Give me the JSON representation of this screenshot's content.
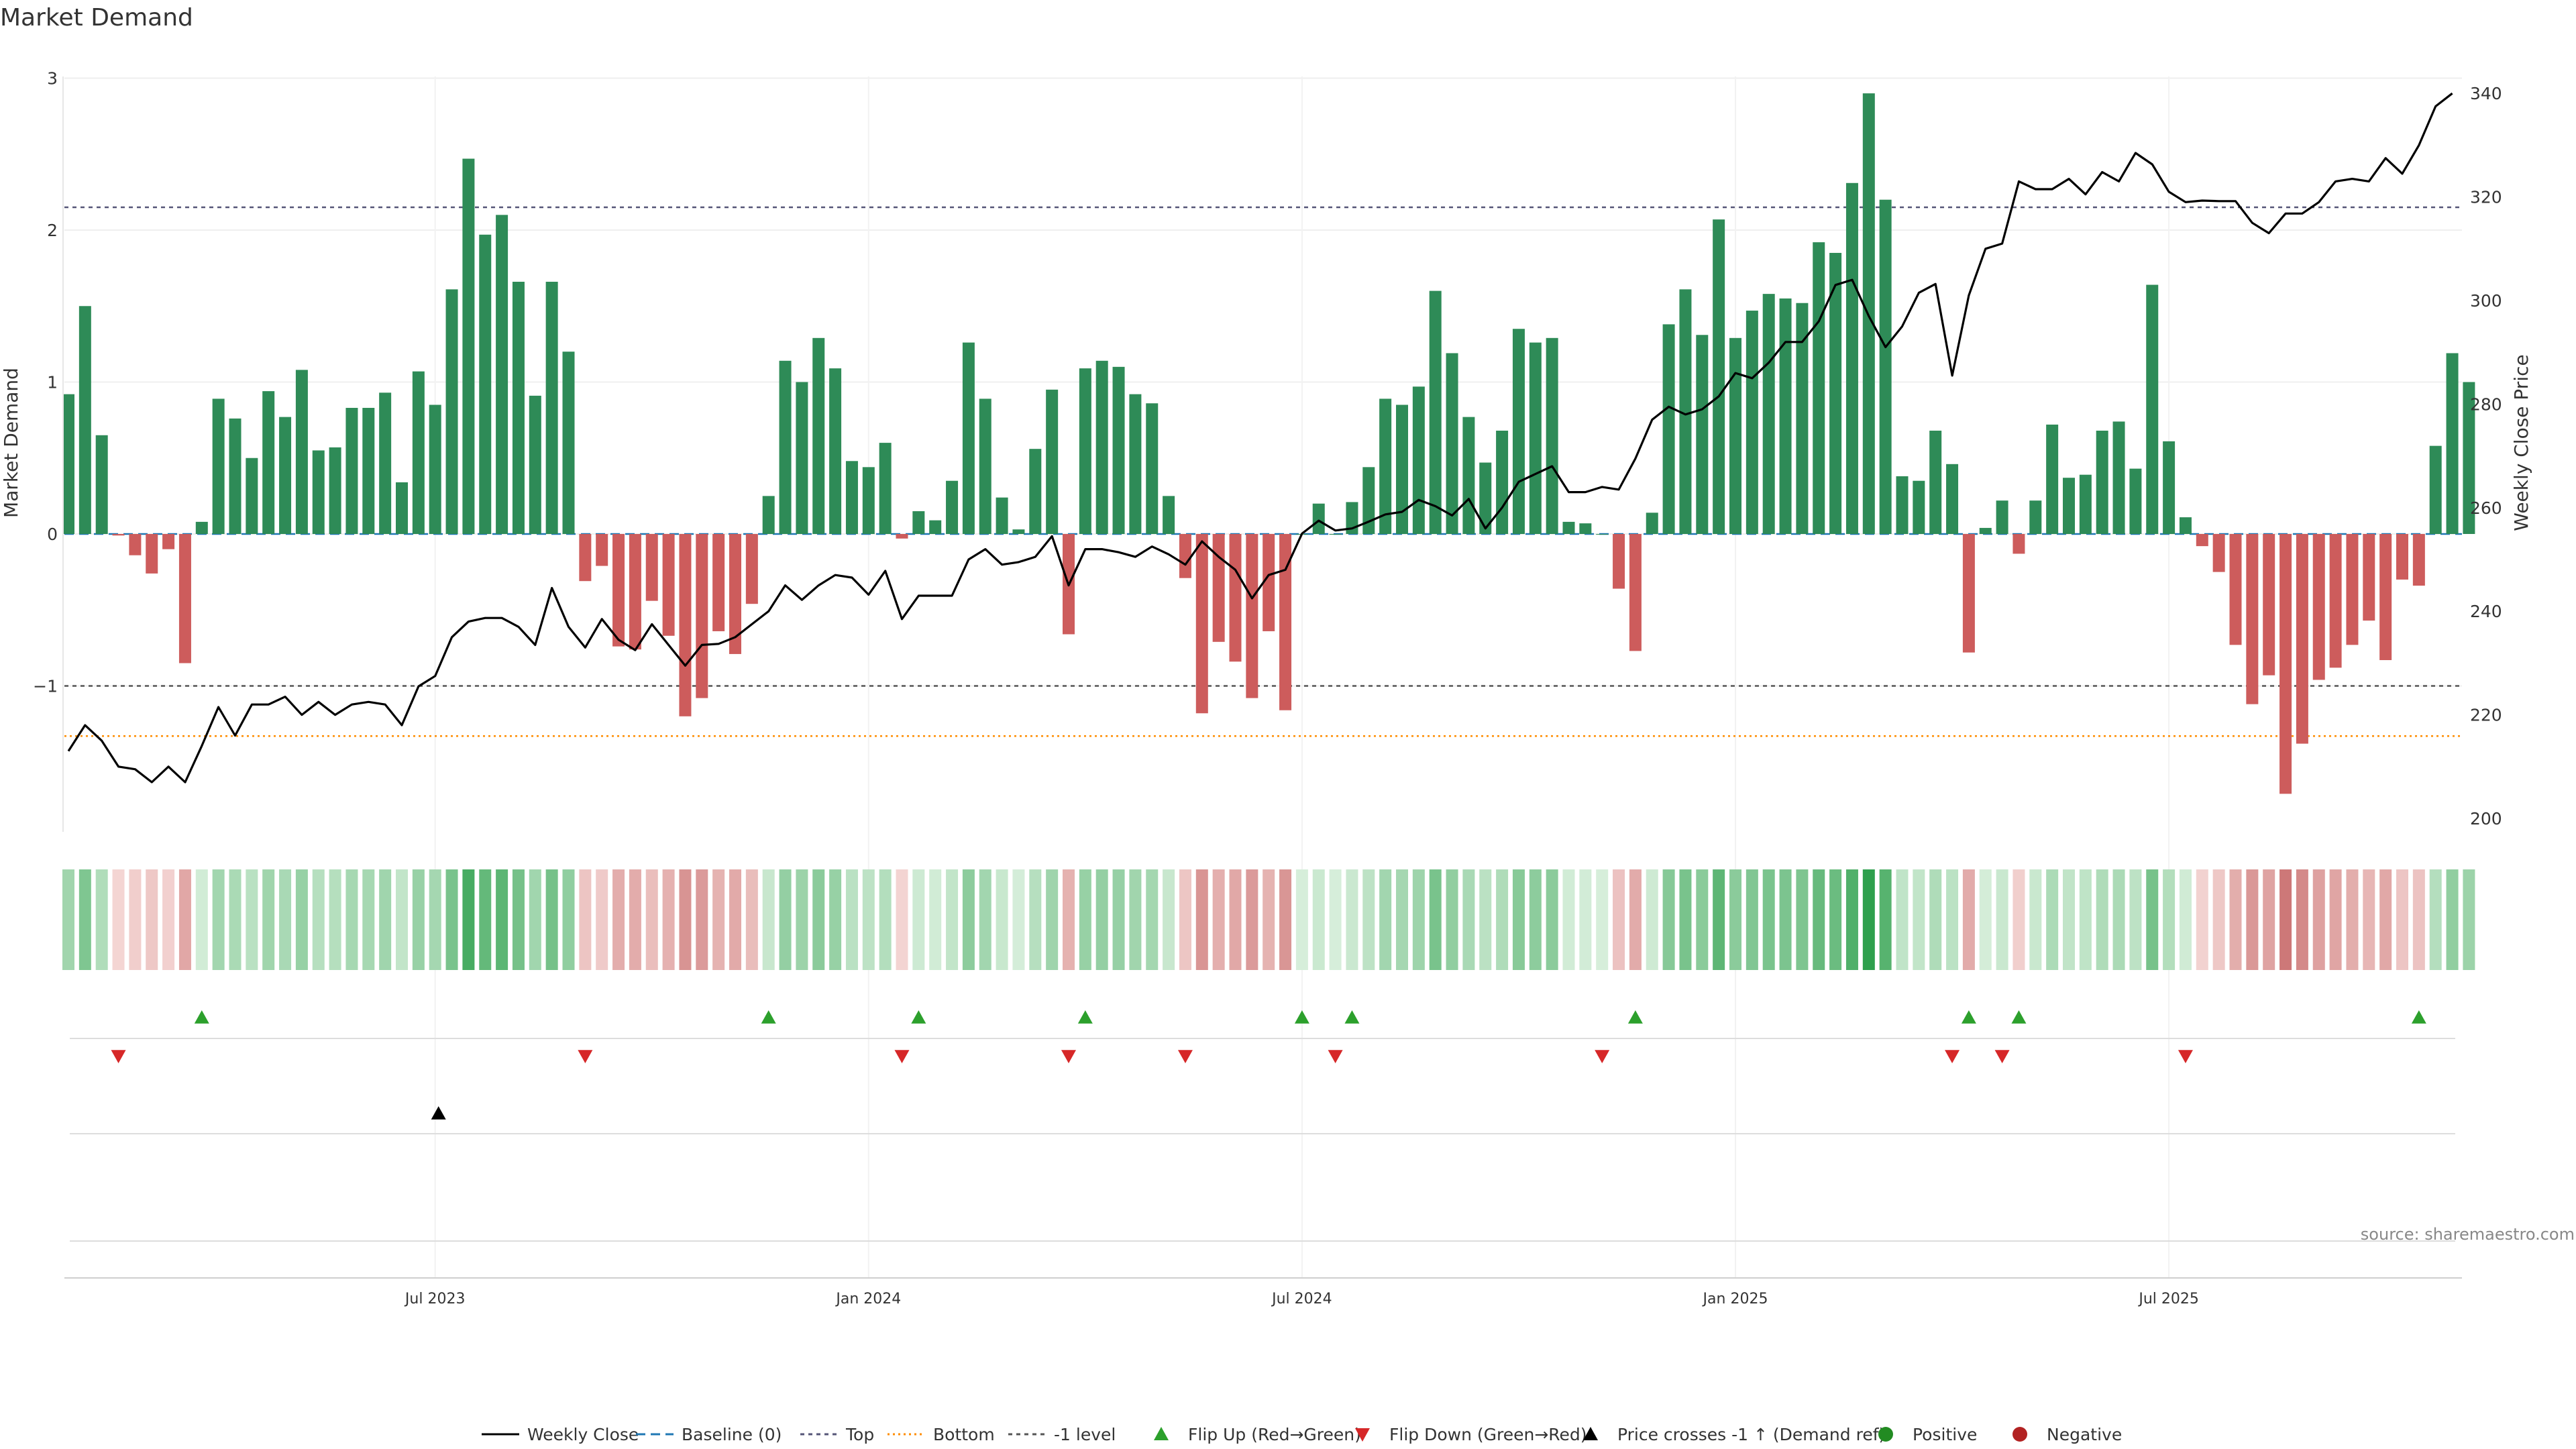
{
  "chart_data": {
    "type": "bar",
    "title": "Market Demand",
    "ylabel": "Market Demand",
    "ylabel_right": "Weekly Close Price",
    "ylim": [
      -1.95,
      3.0
    ],
    "ylim_right": [
      200,
      340
    ],
    "yticks": [
      -1,
      0,
      1,
      2,
      3
    ],
    "yticks_right": [
      200,
      220,
      240,
      260,
      280,
      300,
      320,
      340
    ],
    "ytick_labels": [
      "−1",
      "0",
      "1",
      "2",
      "3"
    ],
    "x_range_weeks": [
      0,
      145
    ],
    "x_ticks": [
      {
        "label": "Jul 2023",
        "week": 22
      },
      {
        "label": "Jan 2024",
        "week": 48
      },
      {
        "label": "Jul 2024",
        "week": 74
      },
      {
        "label": "Jan 2025",
        "week": 100
      },
      {
        "label": "Jul 2025",
        "week": 126
      }
    ],
    "reference_lines": {
      "top": 2.15,
      "bottom": -1.33,
      "minus_one_level": -1,
      "baseline": 0
    },
    "colors": {
      "positive": "#2e8b57",
      "negative": "#cd5c5c",
      "price_line": "#000000",
      "baseline": "#1f77b4",
      "top_line": "#555577",
      "bottom_line": "#ff8c00",
      "level_line": "#555555",
      "flip_up": "#2ca02c",
      "flip_down": "#d62728",
      "dot_positive": "#228b22",
      "dot_negative": "#b22222"
    },
    "series": [
      {
        "name": "Market Demand",
        "values": [
          0.92,
          1.5,
          0.65,
          -0.01,
          -0.14,
          -0.26,
          -0.1,
          -0.85,
          0.08,
          0.89,
          0.76,
          0.5,
          0.94,
          0.77,
          1.08,
          0.55,
          0.57,
          0.83,
          0.83,
          0.93,
          0.34,
          1.07,
          0.85,
          1.61,
          2.47,
          1.97,
          2.1,
          1.66,
          0.91,
          1.66,
          1.2,
          -0.31,
          -0.21,
          -0.74,
          -0.76,
          -0.44,
          -0.67,
          -1.2,
          -1.08,
          -0.64,
          -0.79,
          -0.46,
          0.25,
          1.14,
          1.0,
          1.29,
          1.09,
          0.48,
          0.44,
          0.6,
          -0.03,
          0.15,
          0.09,
          0.35,
          1.26,
          0.89,
          0.24,
          0.03,
          0.56,
          0.95,
          -0.66,
          1.09,
          1.14,
          1.1,
          0.92,
          0.86,
          0.25,
          -0.29,
          -1.18,
          -0.71,
          -0.84,
          -1.08,
          -0.64,
          -1.16,
          0.0,
          0.2,
          0.0,
          0.21,
          0.44,
          0.89,
          0.85,
          0.97,
          1.6,
          1.19,
          0.77,
          0.47,
          0.68,
          1.35,
          1.26,
          1.29,
          0.08,
          0.07,
          0.0,
          -0.36,
          -0.77,
          0.14,
          1.38,
          1.61,
          1.31,
          2.07,
          1.29,
          1.47,
          1.58,
          1.55,
          1.52,
          1.92,
          1.85,
          2.31,
          2.9,
          2.2,
          0.38,
          0.35,
          0.68,
          0.46,
          -0.78,
          0.04,
          0.22,
          -0.13,
          0.22,
          0.72,
          0.37,
          0.39,
          0.68,
          0.74,
          0.43,
          1.64,
          0.61,
          0.11,
          -0.08,
          -0.25,
          -0.73,
          -1.12,
          -0.93,
          -1.71,
          -1.38,
          -0.96,
          -0.88,
          -0.73,
          -0.57,
          -0.83,
          -0.3,
          -0.34,
          0.58,
          1.19,
          1.0
        ]
      },
      {
        "name": "Weekly Close",
        "values": [
          213,
          218,
          215,
          210,
          209.5,
          207,
          210,
          207,
          214,
          221.5,
          216,
          222,
          222,
          223.5,
          220,
          222.5,
          220,
          222,
          222.5,
          222,
          218,
          225.5,
          227.5,
          235,
          238,
          238.7,
          238.7,
          237,
          233.5,
          244.5,
          237,
          233,
          238.5,
          234.5,
          232.5,
          237.5,
          233.5,
          229.5,
          233.5,
          233.7,
          235,
          237.5,
          240,
          245,
          242.2,
          245,
          247,
          246.5,
          243.2,
          247.8,
          238.5,
          243,
          243,
          243,
          250,
          252,
          249,
          249.5,
          250.5,
          254.5,
          245,
          252,
          252,
          251.4,
          250.5,
          252.5,
          251,
          249,
          253.5,
          250.5,
          248,
          242.5,
          247,
          248,
          255,
          257.5,
          255.6,
          256,
          257.3,
          258.7,
          259.2,
          261.5,
          260.3,
          258.5,
          261.7,
          256,
          260,
          265,
          266.5,
          268,
          263,
          263,
          264,
          263.5,
          269.5,
          277,
          279.5,
          278,
          279,
          281.5,
          286,
          285,
          288,
          292,
          292,
          296,
          303,
          304,
          297,
          291,
          295,
          301.5,
          303.2,
          285.5,
          301,
          310,
          311,
          323,
          321.5,
          321.5,
          323.5,
          320.5,
          324.8,
          323,
          328.5,
          326.3,
          321,
          319,
          319.3,
          319.2,
          319.2,
          315,
          313,
          316.8,
          316.8,
          319,
          323,
          323.5,
          323,
          327.5,
          324.5,
          330,
          337.5,
          340
        ]
      }
    ],
    "heat_strip": {
      "name": "Demand intensity"
    },
    "flip_up_weeks": [
      8,
      42,
      51,
      61,
      74,
      77,
      94,
      114,
      117,
      141
    ],
    "flip_down_weeks": [
      3,
      31,
      50,
      60,
      67,
      76,
      92,
      113,
      116,
      127
    ],
    "price_crosses_weeks": [
      22
    ],
    "legend": {
      "position": "bottom-center",
      "items": [
        {
          "label": "Weekly Close",
          "kind": "line"
        },
        {
          "label": "Baseline (0)",
          "kind": "dash-blue"
        },
        {
          "label": "Top",
          "kind": "dash-gray"
        },
        {
          "label": "Bottom",
          "kind": "dot-orange"
        },
        {
          "label": "-1 level",
          "kind": "dash-dark"
        },
        {
          "label": "Flip Up (Red→Green)",
          "kind": "tri-up-green"
        },
        {
          "label": "Flip Down (Green→Red)",
          "kind": "tri-down-red"
        },
        {
          "label": "Price crosses -1 ↑ (Demand ref)",
          "kind": "tri-up-black"
        },
        {
          "label": "Positive",
          "kind": "dot-green"
        },
        {
          "label": "Negative",
          "kind": "dot-red"
        }
      ]
    },
    "source_note": "source: sharemaestro.com"
  }
}
